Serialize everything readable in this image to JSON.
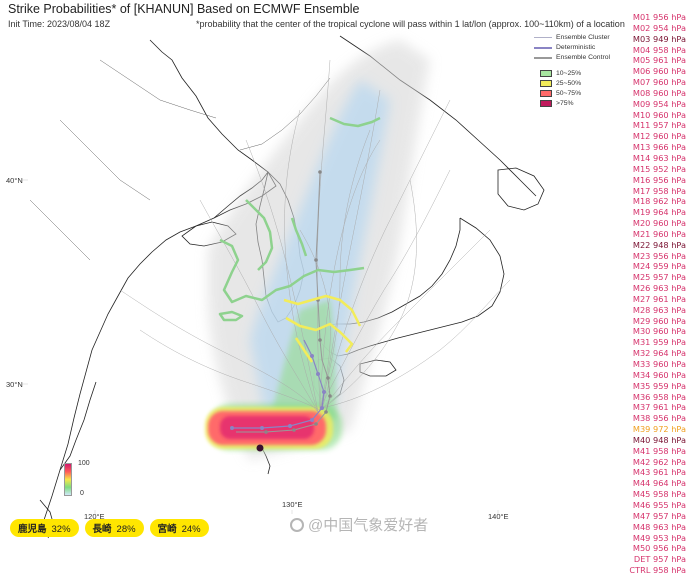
{
  "header": {
    "title": "Strike Probabilities* of [KHANUN] Based on ECMWF Ensemble",
    "init_time": "Init Time: 2023/08/04 18Z",
    "note": "*probability that the center of the tropical cyclone will pass within 1 lat/lon (approx. 100~110km) of a location"
  },
  "legend": {
    "lines": [
      {
        "label": "Ensemble Cluster",
        "color": "#b0b0c8",
        "icon": "thin-line"
      },
      {
        "label": "Deterministic",
        "color": "#8a84c4",
        "icon": "dot-line"
      },
      {
        "label": "Ensemble Control",
        "color": "#999999",
        "icon": "dot-line"
      }
    ],
    "probability_bins": [
      {
        "label": "10~25%",
        "color": "#a8e6a0"
      },
      {
        "label": "25~50%",
        "color": "#f2ec5a"
      },
      {
        "label": "50~75%",
        "color": "#ff6a6a"
      },
      {
        "label": ">75%",
        "color": "#c01a5c"
      }
    ]
  },
  "axes": {
    "lat_labels": [
      "40°N",
      "30°N"
    ],
    "lon_labels": [
      "120°E",
      "130°E",
      "140°E"
    ]
  },
  "colorbar": {
    "top": "100",
    "bottom": "0"
  },
  "members": [
    {
      "label": "M01 956 hPa",
      "color": "#d6336c"
    },
    {
      "label": "M02 954 hPa",
      "color": "#d6336c"
    },
    {
      "label": "M03 949 hPa",
      "color": "#7a1232"
    },
    {
      "label": "M04 958 hPa",
      "color": "#d6336c"
    },
    {
      "label": "M05 961 hPa",
      "color": "#d6336c"
    },
    {
      "label": "M06 960 hPa",
      "color": "#d6336c"
    },
    {
      "label": "M07 960 hPa",
      "color": "#d6336c"
    },
    {
      "label": "M08 960 hPa",
      "color": "#d6336c"
    },
    {
      "label": "M09 954 hPa",
      "color": "#d6336c"
    },
    {
      "label": "M10 960 hPa",
      "color": "#d6336c"
    },
    {
      "label": "M11 957 hPa",
      "color": "#d6336c"
    },
    {
      "label": "M12 960 hPa",
      "color": "#d6336c"
    },
    {
      "label": "M13 966 hPa",
      "color": "#d6336c"
    },
    {
      "label": "M14 963 hPa",
      "color": "#d6336c"
    },
    {
      "label": "M15 952 hPa",
      "color": "#d6336c"
    },
    {
      "label": "M16 956 hPa",
      "color": "#d6336c"
    },
    {
      "label": "M17 958 hPa",
      "color": "#d6336c"
    },
    {
      "label": "M18 962 hPa",
      "color": "#d6336c"
    },
    {
      "label": "M19 964 hPa",
      "color": "#d6336c"
    },
    {
      "label": "M20 960 hPa",
      "color": "#d6336c"
    },
    {
      "label": "M21 960 hPa",
      "color": "#d6336c"
    },
    {
      "label": "M22 948 hPa",
      "color": "#7a1232"
    },
    {
      "label": "M23 956 hPa",
      "color": "#d6336c"
    },
    {
      "label": "M24 959 hPa",
      "color": "#d6336c"
    },
    {
      "label": "M25 957 hPa",
      "color": "#d6336c"
    },
    {
      "label": "M26 963 hPa",
      "color": "#d6336c"
    },
    {
      "label": "M27 961 hPa",
      "color": "#d6336c"
    },
    {
      "label": "M28 963 hPa",
      "color": "#d6336c"
    },
    {
      "label": "M29 960 hPa",
      "color": "#d6336c"
    },
    {
      "label": "M30 960 hPa",
      "color": "#d6336c"
    },
    {
      "label": "M31 959 hPa",
      "color": "#d6336c"
    },
    {
      "label": "M32 964 hPa",
      "color": "#d6336c"
    },
    {
      "label": "M33 960 hPa",
      "color": "#d6336c"
    },
    {
      "label": "M34 960 hPa",
      "color": "#d6336c"
    },
    {
      "label": "M35 959 hPa",
      "color": "#d6336c"
    },
    {
      "label": "M36 958 hPa",
      "color": "#d6336c"
    },
    {
      "label": "M37 961 hPa",
      "color": "#d6336c"
    },
    {
      "label": "M38 956 hPa",
      "color": "#d6336c"
    },
    {
      "label": "M39 972 hPa",
      "color": "#f0a020"
    },
    {
      "label": "M40 948 hPa",
      "color": "#7a1232"
    },
    {
      "label": "M41 958 hPa",
      "color": "#d6336c"
    },
    {
      "label": "M42 962 hPa",
      "color": "#d6336c"
    },
    {
      "label": "M43 961 hPa",
      "color": "#d6336c"
    },
    {
      "label": "M44 964 hPa",
      "color": "#d6336c"
    },
    {
      "label": "M45 958 hPa",
      "color": "#d6336c"
    },
    {
      "label": "M46 955 hPa",
      "color": "#d6336c"
    },
    {
      "label": "M47 957 hPa",
      "color": "#d6336c"
    },
    {
      "label": "M48 963 hPa",
      "color": "#d6336c"
    },
    {
      "label": "M49 953 hPa",
      "color": "#d6336c"
    },
    {
      "label": "M50 956 hPa",
      "color": "#d6336c"
    },
    {
      "label": "DET 957 hPa",
      "color": "#d6336c"
    },
    {
      "label": "CTRL 958 hPa",
      "color": "#d6336c"
    }
  ],
  "cities": [
    {
      "name": "鹿児島",
      "prob": "32%"
    },
    {
      "name": "長崎",
      "prob": "28%"
    },
    {
      "name": "宮崎",
      "prob": "24%"
    }
  ],
  "watermark": "@中国气象爱好者"
}
